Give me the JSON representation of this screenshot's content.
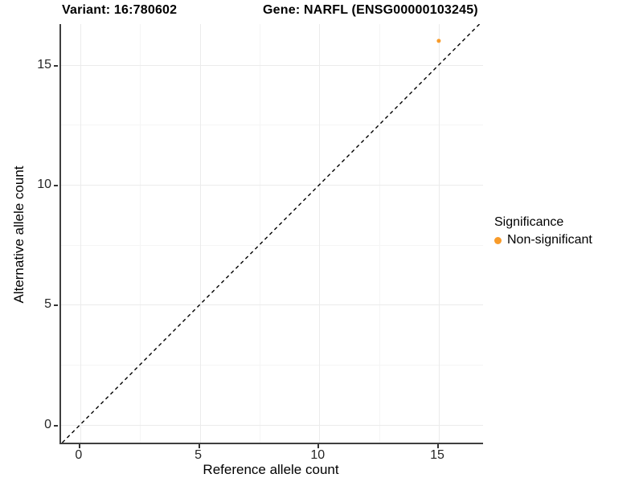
{
  "figure": {
    "background": "#ffffff",
    "titles": {
      "variant": "Variant: 16:780602",
      "gene": "Gene: NARFL (ENSG00000103245)"
    }
  },
  "legend": {
    "title": "Significance",
    "items": [
      {
        "label": "Non-significant",
        "color": "#f89b2a",
        "marker": "circle-icon"
      }
    ]
  },
  "colors": {
    "accent_orange": "#f89b2a",
    "axis_line": "#3f3f3f",
    "grid_major": "#ebebeb",
    "grid_minor": "#f5f5f5",
    "reference_line": "#000000",
    "tick_text": "#262626"
  },
  "chart_data": {
    "type": "scatter",
    "title": "Variant: 16:780602   Gene: NARFL (ENSG00000103245)",
    "xlabel": "Reference allele count",
    "ylabel": "Alternative allele count",
    "xlim": [
      -0.8,
      16.85
    ],
    "ylim": [
      -0.75,
      16.7
    ],
    "x_ticks": [
      0,
      5,
      10,
      15
    ],
    "y_ticks": [
      0,
      5,
      10,
      15
    ],
    "x_minor_ticks": [
      2.5,
      7.5,
      12.5
    ],
    "y_minor_ticks": [
      2.5,
      7.5,
      12.5
    ],
    "grid": true,
    "legend_position": "right",
    "series": [
      {
        "name": "Non-significant",
        "color": "#f89b2a",
        "marker_radius": 2.6,
        "points": [
          {
            "x": 15,
            "y": 16
          }
        ]
      }
    ],
    "reference_line": {
      "type": "identity",
      "style": "dashed",
      "from": -0.75,
      "to": 16.7
    }
  }
}
